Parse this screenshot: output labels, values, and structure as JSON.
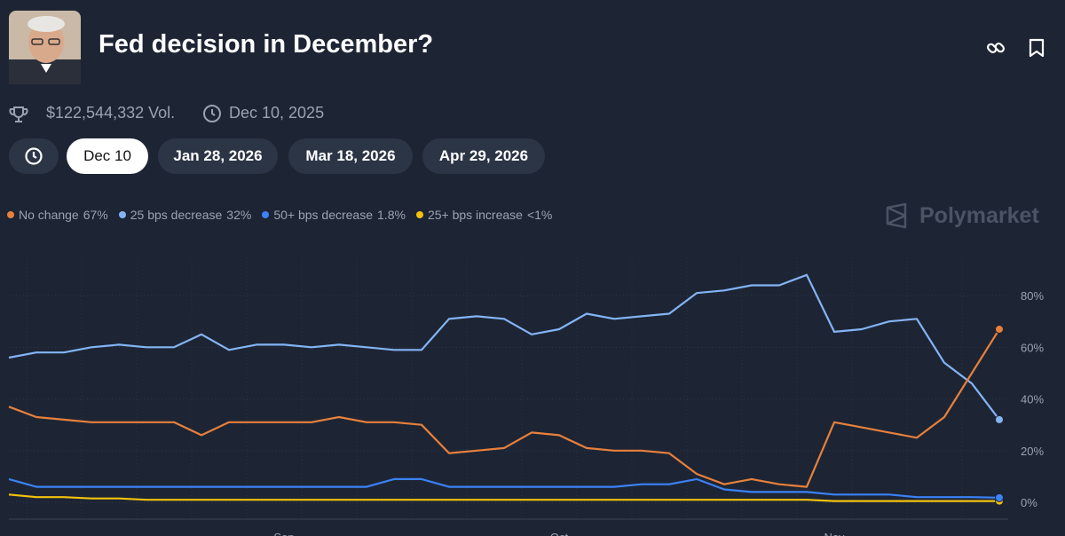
{
  "header": {
    "title": "Fed decision in December?",
    "volume": "$122,544,332 Vol.",
    "end_date": "Dec 10, 2025"
  },
  "tabs": [
    "Dec 10",
    "Jan 28, 2026",
    "Mar 18, 2026",
    "Apr 29, 2026"
  ],
  "watermark": "Polymarket",
  "chart_data": {
    "type": "line",
    "categories": [
      null,
      null,
      null,
      null,
      null,
      null,
      null,
      null,
      null,
      null,
      "Sep",
      null,
      null,
      null,
      null,
      null,
      null,
      null,
      null,
      null,
      "Oct",
      null,
      null,
      null,
      null,
      null,
      null,
      null,
      null,
      null,
      "Nov",
      null,
      null,
      null,
      null,
      null,
      null
    ],
    "series": [
      {
        "name": "No change",
        "last_label": "67%",
        "color": "#e8803c",
        "values": [
          37,
          33,
          32,
          31,
          31,
          31,
          31,
          26,
          31,
          31,
          31,
          31,
          33,
          31,
          31,
          30,
          19,
          20,
          21,
          27,
          26,
          21,
          20,
          20,
          19,
          11,
          7,
          9,
          7,
          6,
          31,
          29,
          27,
          25,
          33,
          50,
          67
        ]
      },
      {
        "name": "25 bps decrease",
        "last_label": "32%",
        "color": "#84b4f5",
        "values": [
          56,
          58,
          58,
          60,
          61,
          60,
          60,
          65,
          59,
          61,
          61,
          60,
          61,
          60,
          59,
          59,
          71,
          72,
          71,
          65,
          67,
          73,
          71,
          72,
          73,
          81,
          82,
          84,
          84,
          88,
          66,
          67,
          70,
          71,
          54,
          46,
          32
        ]
      },
      {
        "name": "50+ bps decrease",
        "last_label": "1.8%",
        "color": "#3b82f6",
        "values": [
          9,
          6,
          6,
          6,
          6,
          6,
          6,
          6,
          6,
          6,
          6,
          6,
          6,
          6,
          9,
          9,
          6,
          6,
          6,
          6,
          6,
          6,
          6,
          7,
          7,
          9,
          5,
          4,
          4,
          4,
          3,
          3,
          3,
          2,
          2,
          2,
          1.8
        ]
      },
      {
        "name": "25+ bps increase",
        "last_label": "<1%",
        "color": "#f4c20d",
        "values": [
          3,
          2,
          2,
          1.5,
          1.5,
          1,
          1,
          1,
          1,
          1,
          1,
          1,
          1,
          1,
          1,
          1,
          1,
          1,
          1,
          1,
          1,
          1,
          1,
          1,
          1,
          1,
          1,
          1,
          1,
          1,
          0.5,
          0.5,
          0.5,
          0.5,
          0.5,
          0.5,
          0.5
        ]
      }
    ],
    "ylim": [
      -6.5,
      94.8
    ],
    "yticks": [
      {
        "value": 0,
        "label": "0%"
      },
      {
        "value": 20,
        "label": "20%"
      },
      {
        "value": 40,
        "label": "40%"
      },
      {
        "value": 60,
        "label": "60%"
      },
      {
        "value": 80,
        "label": "80%"
      }
    ],
    "grid": true
  }
}
